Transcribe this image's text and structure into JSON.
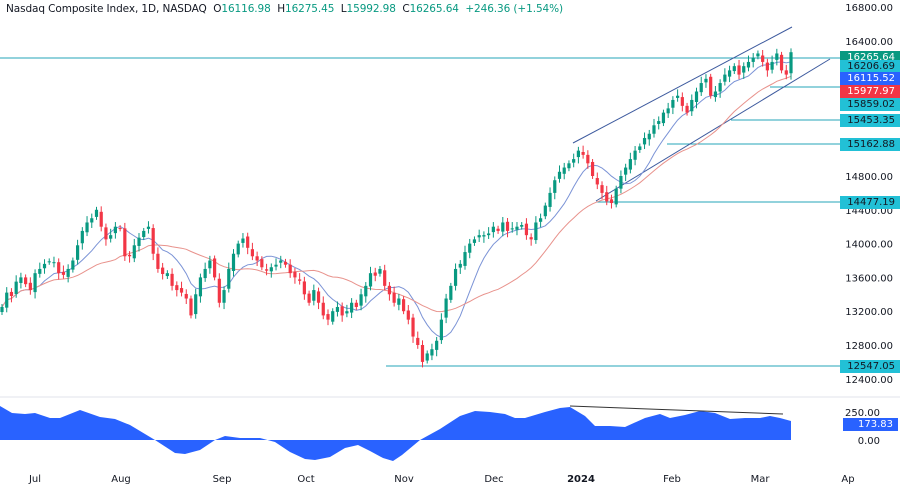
{
  "header": {
    "symbol": "Nasdaq Composite Index, 1D, NASDAQ",
    "open_label": "O",
    "open": "16116.98",
    "high_label": "H",
    "high": "16275.45",
    "low_label": "L",
    "low": "15992.98",
    "close_label": "C",
    "close": "16265.64",
    "change": "+246.36 (+1.54%)"
  },
  "colors": {
    "up": "#089981",
    "down": "#f23645",
    "ma_fast": "#7b93d6",
    "ma_slow": "#e8928c",
    "level_line": "#26a6b8",
    "channel": "#3d5a9e",
    "oscillator": "#2962ff",
    "last_price_badge": "#089981",
    "level_badge": "#22c0d6",
    "ma_fast_badge": "#2962ff",
    "ma_slow_badge": "#f23645"
  },
  "price_axis": {
    "ticks": [
      "16800.00",
      "16400.00",
      "14800.00",
      "14400.00",
      "14000.00",
      "13600.00",
      "13200.00",
      "12800.00",
      "12400.00"
    ],
    "badges": [
      {
        "value": "16265.64",
        "type": "last"
      },
      {
        "value": "16206.69",
        "type": "level"
      },
      {
        "value": "16115.52",
        "type": "ma_fast"
      },
      {
        "value": "15977.97",
        "type": "ma_slow"
      },
      {
        "value": "15859.02",
        "type": "level"
      },
      {
        "value": "15453.35",
        "type": "level"
      },
      {
        "value": "15162.88",
        "type": "level"
      },
      {
        "value": "14477.19",
        "type": "level"
      },
      {
        "value": "12547.05",
        "type": "level"
      }
    ]
  },
  "oscillator_axis": {
    "ticks": [
      "250.00",
      "0.00"
    ],
    "badge": "173.83"
  },
  "time_axis": {
    "labels": [
      "Jul",
      "Aug",
      "Sep",
      "Oct",
      "Nov",
      "Dec",
      "2024",
      "Feb",
      "Mar",
      "Ap"
    ]
  },
  "chart_data": {
    "type": "candlestick",
    "title": "Nasdaq Composite Index, 1D, NASDAQ",
    "ohlc_last": {
      "open": 16116.98,
      "high": 16275.45,
      "low": 15992.98,
      "close": 16265.64,
      "change": 246.36,
      "change_pct": 1.54
    },
    "x_range": [
      "2023-06 (late)",
      "2024-03 (mid)"
    ],
    "y_range": [
      12400,
      16800
    ],
    "support_resistance_levels": [
      16265.64,
      15859.02,
      15453.35,
      15162.88,
      14477.19,
      12547.05
    ],
    "moving_averages": [
      {
        "name": "fast MA",
        "last": 16115.52
      },
      {
        "name": "slow MA",
        "last": 15977.97
      }
    ],
    "approx_closes_by_month": {
      "Jul": 14200,
      "Aug": 13800,
      "Sep": 13550,
      "Oct": 13400,
      "Nov_start": 12700,
      "Dec": 14200,
      "Jan_start": 14900,
      "Feb": 15600,
      "Mar": 16200
    },
    "rising_channel": {
      "start": "late Dec 2023",
      "end": "mid Mar 2024"
    },
    "oscillator": {
      "type": "area",
      "last": 173.83,
      "ticks": [
        0,
        250
      ],
      "note": "bearish divergence trendline drawn from late Dec peak to Mar"
    }
  }
}
